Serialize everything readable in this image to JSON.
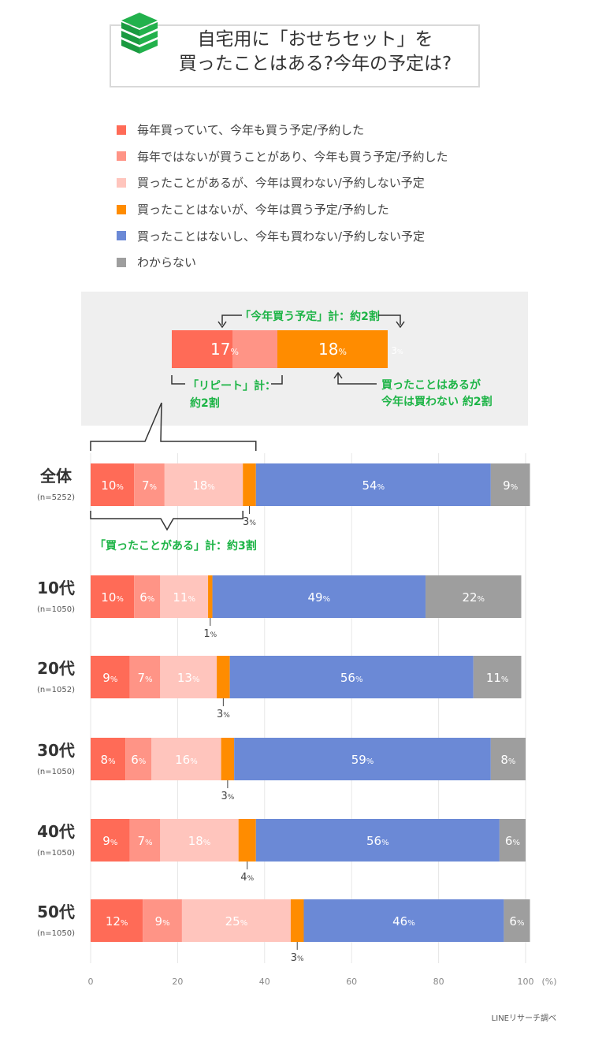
{
  "title": "自宅用に「おせちセット」を\n買ったことはある?今年の予定は?",
  "legend": [
    {
      "label": "毎年買っていて、今年も買う予定/予約した",
      "color": "#ff6b57"
    },
    {
      "label": "毎年ではないが買うことがあり、今年も買う予定/予約した",
      "color": "#ff9486"
    },
    {
      "label": "買ったことがあるが、今年は買わない/予約しない予定",
      "color": "#ffc5bd"
    },
    {
      "label": "買ったことはないが、今年は買う予定/予約した",
      "color": "#ff8c00"
    },
    {
      "label": "買ったことはないし、今年も買わない/予約しない予定",
      "color": "#6b89d6"
    },
    {
      "label": "わからない",
      "color": "#9e9e9e"
    }
  ],
  "callout": {
    "top_label": "「今年買う予定」計：約2割",
    "repeat_label": "「リピート」計：\n約2割",
    "bought_label": "買ったことはあるが\n今年は買わない 約2割",
    "bar_values": [
      17,
      18,
      3
    ],
    "bar_colors": [
      "#ff6b57",
      "#ffc5bd",
      "#ff8c00"
    ],
    "ever_bought_label": "「買ったことがある」計：約3割",
    "accent_color": "#1db446"
  },
  "chart_data": {
    "type": "bar",
    "orientation": "horizontal",
    "stacked": true,
    "unit": "%",
    "categories": [
      "全体",
      "10代",
      "20代",
      "30代",
      "40代",
      "50代"
    ],
    "sample_sizes": [
      "(n=5252)",
      "(n=1050)",
      "(n=1052)",
      "(n=1050)",
      "(n=1050)",
      "(n=1050)"
    ],
    "series": [
      {
        "name": "毎年買っていて、今年も買う予定/予約した",
        "values": [
          10,
          10,
          9,
          8,
          9,
          12
        ],
        "color": "#ff6b57"
      },
      {
        "name": "毎年ではないが買うことがあり、今年も買う予定/予約した",
        "values": [
          7,
          6,
          7,
          6,
          7,
          9
        ],
        "color": "#ff9486"
      },
      {
        "name": "買ったことがあるが、今年は買わない/予約しない予定",
        "values": [
          18,
          11,
          13,
          16,
          18,
          25
        ],
        "color": "#ffc5bd"
      },
      {
        "name": "買ったことはないが、今年は買う予定/予約した",
        "values": [
          3,
          1,
          3,
          3,
          4,
          3
        ],
        "color": "#ff8c00"
      },
      {
        "name": "買ったことはないし、今年も買わない/予約しない予定",
        "values": [
          54,
          49,
          56,
          59,
          56,
          46
        ],
        "color": "#6b89d6"
      },
      {
        "name": "わからない",
        "values": [
          9,
          22,
          11,
          8,
          6,
          6
        ],
        "color": "#9e9e9e"
      }
    ],
    "xlim": [
      0,
      100
    ],
    "xticks": [
      "0",
      "20",
      "40",
      "60",
      "80",
      "100"
    ],
    "xunit": "(%)",
    "grid": true
  },
  "footer": "LINEリサーチ調べ"
}
